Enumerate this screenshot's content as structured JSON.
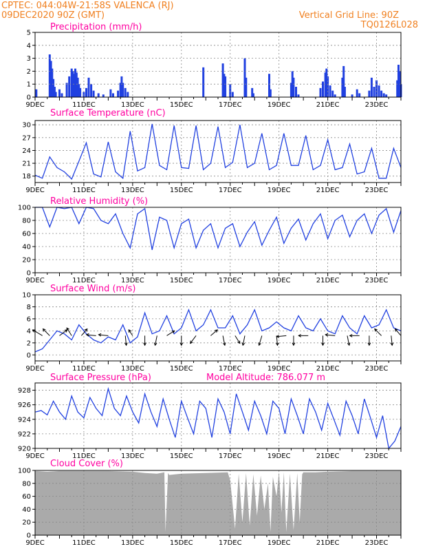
{
  "header": {
    "left_line1": "CPTEC:   044:04W-21:58S   VALENCA (RJ)",
    "left_line2": "09DEC2020 90Z (GMT)",
    "right_line1": "Vertical Grid Line: 90Z",
    "right_line2": "TQ0126L028"
  },
  "colors": {
    "header": "#f08020",
    "title": "#ff00a0",
    "series": "#2040e0",
    "cloud": "#aaaaaa",
    "grid": "#888888"
  },
  "x_axis": {
    "start_day": 9,
    "end_day": 24,
    "labels": [
      {
        "day": 9,
        "text": "9DEC"
      },
      {
        "day": 11,
        "text": "11DEC"
      },
      {
        "day": 13,
        "text": "13DEC"
      },
      {
        "day": 15,
        "text": "15DEC"
      },
      {
        "day": 17,
        "text": "17DEC"
      },
      {
        "day": 19,
        "text": "19DEC"
      },
      {
        "day": 21,
        "text": "21DEC"
      },
      {
        "day": 23,
        "text": "23DEC"
      }
    ]
  },
  "extra_text": {
    "model_altitude": "Model Altitude:  786.077  m"
  },
  "chart_data": [
    {
      "id": "precip",
      "type": "bar",
      "title": "Precipitation (mm/h)",
      "ylim": [
        0,
        5
      ],
      "yticks": [
        0,
        1,
        2,
        3,
        4,
        5
      ],
      "grid": true,
      "bars": [
        [
          9.05,
          0.6
        ],
        [
          9.6,
          3.3
        ],
        [
          9.65,
          2.8
        ],
        [
          9.7,
          2.2
        ],
        [
          9.75,
          1.4
        ],
        [
          9.8,
          0.8
        ],
        [
          9.85,
          0.4
        ],
        [
          10.0,
          0.6
        ],
        [
          10.1,
          0.3
        ],
        [
          10.3,
          1.1
        ],
        [
          10.4,
          1.6
        ],
        [
          10.5,
          2.2
        ],
        [
          10.55,
          2.0
        ],
        [
          10.6,
          1.8
        ],
        [
          10.65,
          2.2
        ],
        [
          10.7,
          1.9
        ],
        [
          10.75,
          1.5
        ],
        [
          10.8,
          1.0
        ],
        [
          10.85,
          0.7
        ],
        [
          11.0,
          0.4
        ],
        [
          11.1,
          0.7
        ],
        [
          11.2,
          1.5
        ],
        [
          11.3,
          1.0
        ],
        [
          11.4,
          0.5
        ],
        [
          11.6,
          0.3
        ],
        [
          11.8,
          0.2
        ],
        [
          12.1,
          0.6
        ],
        [
          12.2,
          0.3
        ],
        [
          12.4,
          0.5
        ],
        [
          12.5,
          1.1
        ],
        [
          12.55,
          1.6
        ],
        [
          12.6,
          1.1
        ],
        [
          12.7,
          0.7
        ],
        [
          12.8,
          0.4
        ],
        [
          15.9,
          2.3
        ],
        [
          16.7,
          2.6
        ],
        [
          16.75,
          1.8
        ],
        [
          16.8,
          1.6
        ],
        [
          17.0,
          1.0
        ],
        [
          17.1,
          0.4
        ],
        [
          17.6,
          3.0
        ],
        [
          17.65,
          1.5
        ],
        [
          17.9,
          0.7
        ],
        [
          17.95,
          0.3
        ],
        [
          18.6,
          1.8
        ],
        [
          18.65,
          0.6
        ],
        [
          19.5,
          1.1
        ],
        [
          19.55,
          2.0
        ],
        [
          19.6,
          1.5
        ],
        [
          19.7,
          0.8
        ],
        [
          19.8,
          0.2
        ],
        [
          20.7,
          0.7
        ],
        [
          20.8,
          1.2
        ],
        [
          20.9,
          1.9
        ],
        [
          20.95,
          2.2
        ],
        [
          21.0,
          1.6
        ],
        [
          21.1,
          0.9
        ],
        [
          21.2,
          0.5
        ],
        [
          21.3,
          0.2
        ],
        [
          21.6,
          1.5
        ],
        [
          21.65,
          2.4
        ],
        [
          21.7,
          0.8
        ],
        [
          22.0,
          0.2
        ],
        [
          22.2,
          0.6
        ],
        [
          22.3,
          0.3
        ],
        [
          22.7,
          0.5
        ],
        [
          22.8,
          1.5
        ],
        [
          22.9,
          0.8
        ],
        [
          23.0,
          1.3
        ],
        [
          23.1,
          0.9
        ],
        [
          23.2,
          0.5
        ],
        [
          23.3,
          0.3
        ],
        [
          23.4,
          0.2
        ],
        [
          23.85,
          1.3
        ],
        [
          23.9,
          2.5
        ],
        [
          23.95,
          2.0
        ],
        [
          24.0,
          1.0
        ]
      ]
    },
    {
      "id": "temp",
      "type": "line",
      "title": "Surface Temperature (nC)",
      "ylim": [
        16.5,
        31
      ],
      "yticks": [
        18,
        21,
        24,
        27,
        30
      ],
      "grid": true,
      "x": [
        9.0,
        9.3,
        9.6,
        9.9,
        10.2,
        10.5,
        10.8,
        11.1,
        11.4,
        11.7,
        12.0,
        12.3,
        12.6,
        12.9,
        13.2,
        13.5,
        13.8,
        14.1,
        14.4,
        14.7,
        15.0,
        15.3,
        15.6,
        15.9,
        16.2,
        16.5,
        16.8,
        17.1,
        17.4,
        17.7,
        18.0,
        18.3,
        18.6,
        18.9,
        19.2,
        19.5,
        19.8,
        20.1,
        20.4,
        20.7,
        21.0,
        21.3,
        21.6,
        21.9,
        22.2,
        22.5,
        22.8,
        23.1,
        23.4,
        23.7,
        24.0
      ],
      "y": [
        18.2,
        17.5,
        22.5,
        20.0,
        19.0,
        17.3,
        21.5,
        25.8,
        18.5,
        17.8,
        26.0,
        19.0,
        17.5,
        28.5,
        19.2,
        20.0,
        30.2,
        20.5,
        19.5,
        29.8,
        20.0,
        19.8,
        29.8,
        19.5,
        21.0,
        29.6,
        20.0,
        21.2,
        30.0,
        20.0,
        21.0,
        28.0,
        19.5,
        20.5,
        28.0,
        20.5,
        20.5,
        27.5,
        19.5,
        20.5,
        26.5,
        19.5,
        20.0,
        25.5,
        18.5,
        19.0,
        24.5,
        17.5,
        17.5,
        24.5,
        20.0
      ]
    },
    {
      "id": "rh",
      "type": "line",
      "title": "Relative Humidity (%)",
      "ylim": [
        0,
        100
      ],
      "yticks": [
        0,
        20,
        40,
        60,
        80,
        100
      ],
      "grid": true,
      "x": [
        9.0,
        9.3,
        9.6,
        9.9,
        10.2,
        10.5,
        10.8,
        11.1,
        11.4,
        11.7,
        12.0,
        12.3,
        12.6,
        12.9,
        13.2,
        13.5,
        13.8,
        14.1,
        14.4,
        14.7,
        15.0,
        15.3,
        15.6,
        15.9,
        16.2,
        16.5,
        16.8,
        17.1,
        17.4,
        17.7,
        18.0,
        18.3,
        18.6,
        18.9,
        19.2,
        19.5,
        19.8,
        20.1,
        20.4,
        20.7,
        21.0,
        21.3,
        21.6,
        21.9,
        22.2,
        22.5,
        22.8,
        23.1,
        23.4,
        23.7,
        24.0
      ],
      "y": [
        100,
        100,
        70,
        100,
        98,
        100,
        75,
        100,
        98,
        80,
        75,
        90,
        60,
        38,
        90,
        98,
        35,
        85,
        80,
        38,
        75,
        82,
        38,
        65,
        75,
        38,
        68,
        75,
        40,
        62,
        78,
        42,
        65,
        85,
        45,
        68,
        82,
        50,
        75,
        90,
        52,
        80,
        88,
        55,
        80,
        90,
        60,
        88,
        98,
        62,
        95
      ]
    },
    {
      "id": "wind",
      "type": "line",
      "title": "Surface Wind (m/s)",
      "ylim": [
        -1,
        10
      ],
      "yticks": [
        0,
        2,
        4,
        6,
        8,
        10
      ],
      "grid": true,
      "x": [
        9.0,
        9.3,
        9.6,
        9.9,
        10.2,
        10.5,
        10.8,
        11.1,
        11.4,
        11.7,
        12.0,
        12.3,
        12.6,
        12.9,
        13.2,
        13.5,
        13.8,
        14.1,
        14.4,
        14.7,
        15.0,
        15.3,
        15.6,
        15.9,
        16.2,
        16.5,
        16.8,
        17.1,
        17.4,
        17.7,
        18.0,
        18.3,
        18.6,
        18.9,
        19.2,
        19.5,
        19.8,
        20.1,
        20.4,
        20.7,
        21.0,
        21.3,
        21.6,
        21.9,
        22.2,
        22.5,
        22.8,
        23.1,
        23.4,
        23.7,
        24.0
      ],
      "y": [
        0.5,
        1.0,
        2.5,
        4.0,
        3.5,
        2.5,
        5.0,
        3.5,
        2.5,
        2.0,
        3.0,
        2.5,
        5.0,
        2.0,
        3.0,
        7.0,
        3.5,
        4.0,
        6.5,
        3.5,
        4.5,
        7.5,
        4.0,
        5.0,
        7.5,
        4.5,
        4.5,
        6.5,
        3.5,
        5.0,
        7.5,
        4.0,
        4.5,
        5.5,
        4.5,
        4.0,
        6.5,
        4.5,
        4.0,
        6.0,
        4.0,
        3.5,
        6.5,
        4.5,
        3.5,
        6.5,
        4.5,
        5.0,
        7.5,
        4.5,
        4.0
      ],
      "arrows": [
        [
          9.3,
          -1.0,
          0.6
        ],
        [
          9.6,
          -0.7,
          0.7
        ],
        [
          10.0,
          0.8,
          0.6
        ],
        [
          10.5,
          -0.5,
          0.8
        ],
        [
          10.9,
          0.6,
          0.7
        ],
        [
          11.5,
          -1.0,
          0.1
        ],
        [
          12.0,
          -1.0,
          0.1
        ],
        [
          12.7,
          0.1,
          -1.0
        ],
        [
          13.0,
          -0.4,
          0.6
        ],
        [
          13.5,
          0.0,
          -1.0
        ],
        [
          14.0,
          -0.2,
          -1.0
        ],
        [
          14.4,
          0.8,
          0.5
        ],
        [
          15.0,
          0.0,
          -1.0
        ],
        [
          15.6,
          -0.6,
          -0.8
        ],
        [
          16.2,
          0.7,
          0.6
        ],
        [
          16.7,
          0.2,
          -1.0
        ],
        [
          17.2,
          0.5,
          -0.8
        ],
        [
          17.6,
          -0.2,
          -1.0
        ],
        [
          18.3,
          -0.3,
          -1.0
        ],
        [
          18.9,
          0.1,
          -1.0
        ],
        [
          19.3,
          -1.0,
          -0.1
        ],
        [
          19.6,
          0.0,
          -1.0
        ],
        [
          20.2,
          -1.0,
          0.0
        ],
        [
          20.8,
          0.0,
          -1.0
        ],
        [
          21.3,
          -1.0,
          0.1
        ],
        [
          21.8,
          0.2,
          -1.0
        ],
        [
          22.3,
          -1.0,
          0.0
        ],
        [
          22.7,
          0.0,
          -1.0
        ],
        [
          23.2,
          -0.7,
          0.7
        ],
        [
          23.6,
          0.1,
          -1.0
        ],
        [
          24.0,
          -0.6,
          0.7
        ]
      ]
    },
    {
      "id": "pres",
      "type": "line",
      "title": "Surface Pressure (hPa)",
      "ylim": [
        920,
        929
      ],
      "yticks": [
        920,
        922,
        924,
        926,
        928
      ],
      "grid": true,
      "x": [
        9.0,
        9.25,
        9.5,
        9.75,
        10.0,
        10.25,
        10.5,
        10.75,
        11.0,
        11.25,
        11.5,
        11.75,
        12.0,
        12.25,
        12.5,
        12.75,
        13.0,
        13.25,
        13.5,
        13.75,
        14.0,
        14.25,
        14.5,
        14.75,
        15.0,
        15.25,
        15.5,
        15.75,
        16.0,
        16.25,
        16.5,
        16.75,
        17.0,
        17.25,
        17.5,
        17.75,
        18.0,
        18.25,
        18.5,
        18.75,
        19.0,
        19.25,
        19.5,
        19.75,
        20.0,
        20.25,
        20.5,
        20.75,
        21.0,
        21.25,
        21.5,
        21.75,
        22.0,
        22.25,
        22.5,
        22.75,
        23.0,
        23.25,
        23.5,
        23.75,
        24.0
      ],
      "y": [
        925.0,
        925.2,
        924.6,
        926.5,
        925.0,
        924.0,
        927.2,
        925.0,
        924.2,
        927.0,
        925.5,
        924.5,
        928.2,
        925.5,
        924.5,
        927.2,
        925.0,
        923.5,
        927.5,
        925.0,
        923.0,
        926.8,
        924.0,
        921.5,
        926.5,
        924.2,
        922.0,
        926.5,
        925.5,
        921.5,
        926.8,
        925.0,
        922.0,
        927.5,
        925.0,
        922.5,
        926.5,
        924.5,
        922.0,
        926.5,
        925.5,
        922.0,
        926.8,
        924.5,
        922.0,
        926.8,
        925.0,
        922.5,
        926.2,
        924.0,
        921.8,
        926.5,
        924.5,
        922.0,
        926.8,
        924.2,
        921.5,
        924.5,
        920.0,
        921.0,
        923.0
      ]
    },
    {
      "id": "cloud",
      "type": "area",
      "title": "Cloud Cover (%)",
      "ylim": [
        0,
        100
      ],
      "yticks": [
        0,
        20,
        40,
        60,
        80,
        100
      ],
      "grid": true,
      "x": [
        9.0,
        9.5,
        10.0,
        11.0,
        12.0,
        13.0,
        13.5,
        14.0,
        14.3,
        14.35,
        14.45,
        14.5,
        15.0,
        16.0,
        16.9,
        17.0,
        17.2,
        17.35,
        17.5,
        17.65,
        17.8,
        17.95,
        18.1,
        18.25,
        18.4,
        18.55,
        18.65,
        18.75,
        18.9,
        19.0,
        19.1,
        19.2,
        19.3,
        19.45,
        19.6,
        19.75,
        19.85,
        19.95,
        20.0,
        20.5,
        21.0,
        22.0,
        23.0,
        24.0
      ],
      "y": [
        99,
        98,
        99,
        99,
        99,
        98,
        96,
        95,
        97,
        5,
        96,
        93,
        95,
        96,
        97,
        85,
        10,
        95,
        20,
        96,
        15,
        94,
        30,
        92,
        40,
        80,
        5,
        90,
        60,
        98,
        35,
        97,
        5,
        95,
        8,
        96,
        20,
        94,
        97,
        97,
        98,
        99,
        99,
        99
      ]
    }
  ]
}
